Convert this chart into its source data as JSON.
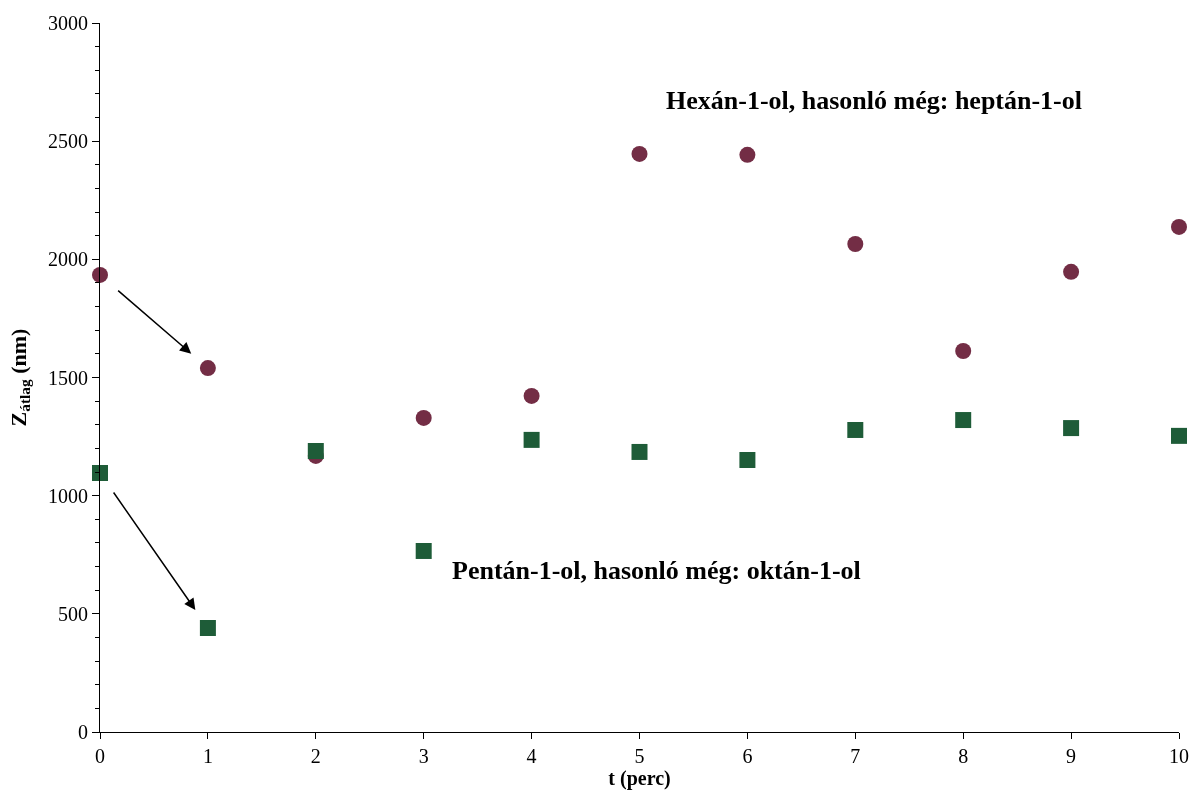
{
  "chart_data": {
    "type": "scatter",
    "xlabel": "t (perc)",
    "ylabel": "Z$_{átlag}$ (nm)",
    "x": [
      0,
      1,
      2,
      3,
      4,
      5,
      6,
      7,
      8,
      9,
      10
    ],
    "xlim": [
      0,
      10
    ],
    "xticks": [
      0,
      1,
      2,
      3,
      4,
      5,
      6,
      7,
      8,
      9,
      10
    ],
    "ylim": [
      0,
      3000
    ],
    "yticks": [
      0,
      500,
      1000,
      1500,
      2000,
      2500,
      3000
    ],
    "legend": false,
    "series": [
      {
        "color": "#732d45",
        "marker": "circle",
        "values": [
          1934,
          1540,
          1168,
          1329,
          1422,
          2446,
          2442,
          2065,
          1612,
          1947,
          2137
        ]
      },
      {
        "color": "#1e5c38",
        "marker": "square",
        "values": [
          1096,
          440,
          1189,
          766,
          1236,
          1185,
          1151,
          1278,
          1320,
          1286,
          1253
        ]
      }
    ],
    "annotations": [
      "Hexán-1-ol, hasonló még: heptán-1-ol",
      "Pentán-1-ol, hasonló még: oktán-1-ol"
    ]
  }
}
